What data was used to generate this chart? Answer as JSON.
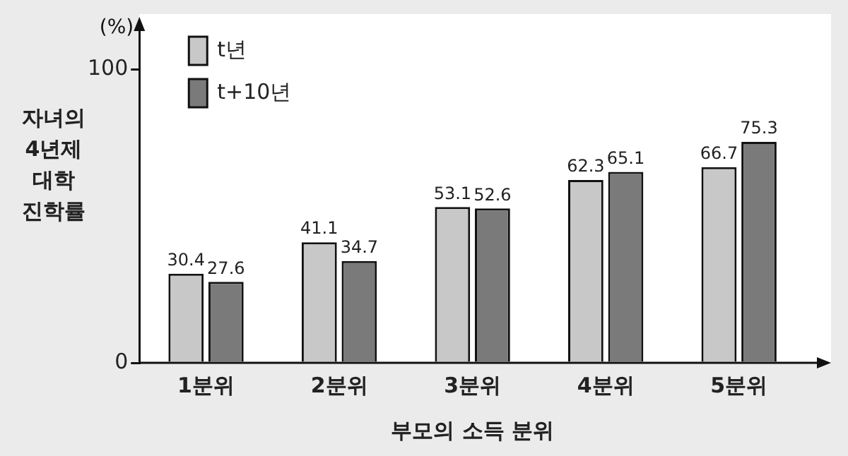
{
  "chart_data": {
    "type": "bar",
    "xlabel": "부모의 소득 분위",
    "ylabel": "자녀의 4년제 대학 진학률",
    "annotations": [
      "(%)"
    ],
    "categories": [
      "1분위",
      "2분위",
      "3분위",
      "4분위",
      "5분위"
    ],
    "series": [
      {
        "name": "t년",
        "color": "#c8c8c8",
        "values": [
          30.4,
          41.1,
          53.1,
          62.3,
          66.7
        ]
      },
      {
        "name": "t+10년",
        "color": "#7a7a7a",
        "values": [
          27.6,
          34.7,
          52.6,
          65.1,
          75.3
        ]
      }
    ],
    "ylim": [
      0,
      115
    ],
    "yticks": [
      0,
      100
    ],
    "grid": false,
    "legend": "top left",
    "data_labels": true
  }
}
